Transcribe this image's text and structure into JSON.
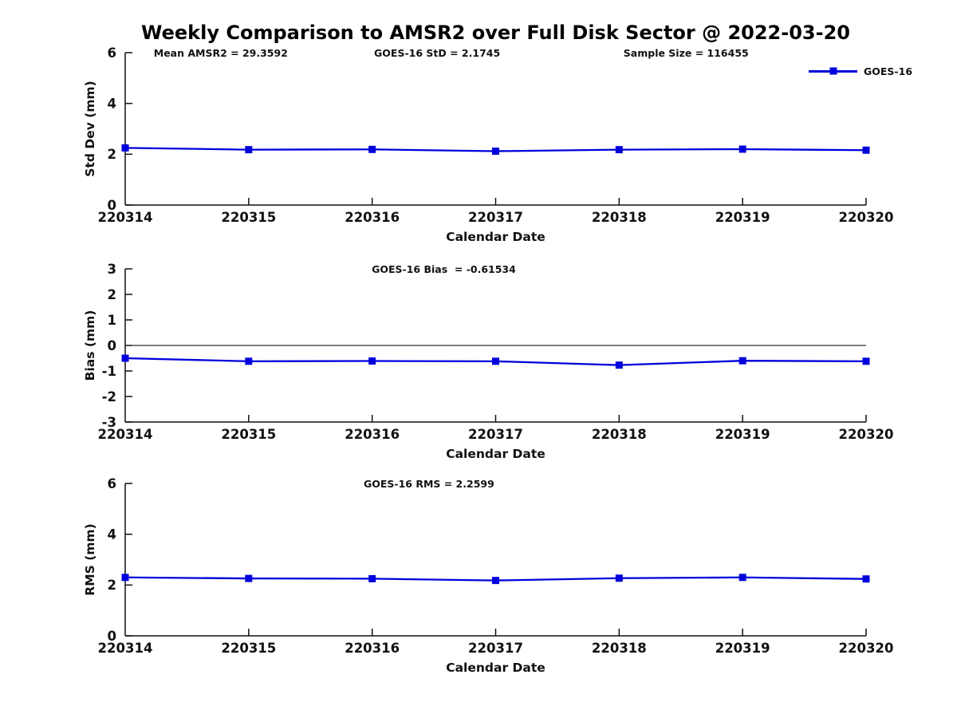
{
  "figure": {
    "title": "Weekly Comparison to AMSR2 over Full Disk Sector @ 2022-03-20",
    "background_color": "#ffffff",
    "text_color": "#111111",
    "accent_color": "#0000dd"
  },
  "legend": {
    "label": "GOES-16",
    "color": "#0000dd",
    "marker": "filled-square",
    "position": "top-right-outside"
  },
  "chart_data": [
    {
      "type": "line",
      "name": "std-dev-panel",
      "categories": [
        "220314",
        "220315",
        "220316",
        "220317",
        "220318",
        "220319",
        "220320"
      ],
      "series": [
        {
          "name": "GOES-16",
          "values": [
            2.25,
            2.18,
            2.19,
            2.12,
            2.18,
            2.2,
            2.16
          ]
        }
      ],
      "xlabel": "Calendar Date",
      "ylabel": "Std Dev (mm)",
      "ylim": [
        0,
        6
      ],
      "yticks": [
        0,
        2,
        4,
        6
      ],
      "grid": false,
      "zero_line": false,
      "annotations": [
        "Mean AMSR2 = 29.3592",
        "GOES-16 StD = 2.1745",
        "Sample Size = 116455"
      ]
    },
    {
      "type": "line",
      "name": "bias-panel",
      "categories": [
        "220314",
        "220315",
        "220316",
        "220317",
        "220318",
        "220319",
        "220320"
      ],
      "series": [
        {
          "name": "GOES-16",
          "values": [
            -0.5,
            -0.62,
            -0.61,
            -0.62,
            -0.77,
            -0.6,
            -0.62
          ]
        }
      ],
      "xlabel": "Calendar Date",
      "ylabel": "Bias (mm)",
      "ylim": [
        -3,
        3
      ],
      "yticks": [
        -3,
        -2,
        -1,
        0,
        1,
        2,
        3
      ],
      "grid": false,
      "zero_line": true,
      "annotations": [
        "GOES-16 Bias  = -0.61534"
      ]
    },
    {
      "type": "line",
      "name": "rms-panel",
      "categories": [
        "220314",
        "220315",
        "220316",
        "220317",
        "220318",
        "220319",
        "220320"
      ],
      "series": [
        {
          "name": "GOES-16",
          "values": [
            2.3,
            2.26,
            2.25,
            2.18,
            2.27,
            2.3,
            2.24
          ]
        }
      ],
      "xlabel": "Calendar Date",
      "ylabel": "RMS (mm)",
      "ylim": [
        0,
        6
      ],
      "yticks": [
        0,
        2,
        4,
        6
      ],
      "grid": false,
      "zero_line": false,
      "annotations": [
        "GOES-16 RMS = 2.2599"
      ]
    }
  ]
}
